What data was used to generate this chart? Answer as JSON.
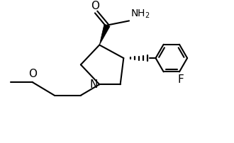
{
  "background": "#ffffff",
  "line_color": "#000000",
  "line_width": 1.5,
  "fig_width": 3.3,
  "fig_height": 2.02,
  "dpi": 100,
  "xlim": [
    0,
    10
  ],
  "ylim": [
    0,
    6.1
  ]
}
